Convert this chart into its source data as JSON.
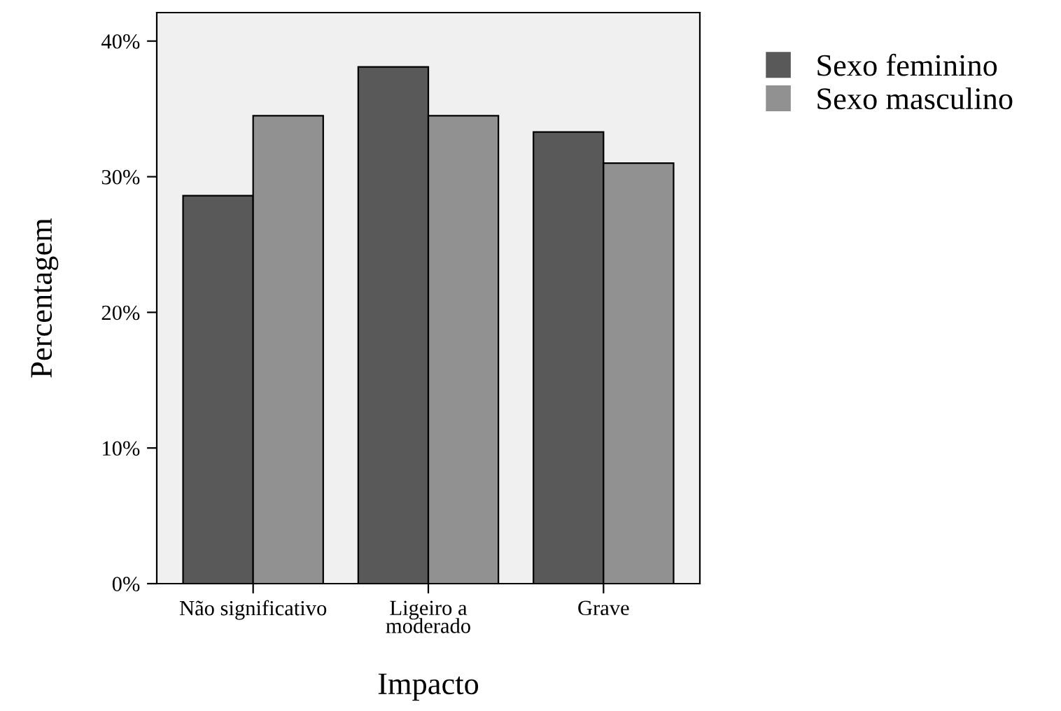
{
  "chart_data": {
    "type": "bar",
    "xlabel": "Impacto",
    "ylabel": "Percentagem",
    "categories": [
      "Não significativo",
      "Ligeiro a\nmoderado",
      "Grave"
    ],
    "series": [
      {
        "name": "Sexo feminino",
        "color": "#595959",
        "values": [
          28.6,
          38.1,
          33.3
        ]
      },
      {
        "name": "Sexo masculino",
        "color": "#919191",
        "values": [
          34.5,
          34.5,
          31.0
        ]
      }
    ],
    "ylim": [
      0,
      42.1
    ],
    "yticks": [
      {
        "value": 0,
        "label": "0%"
      },
      {
        "value": 10,
        "label": "10%"
      },
      {
        "value": 20,
        "label": "20%"
      },
      {
        "value": 30,
        "label": "30%"
      },
      {
        "value": 40,
        "label": "40%"
      }
    ],
    "grid": false,
    "legend": "top right"
  }
}
